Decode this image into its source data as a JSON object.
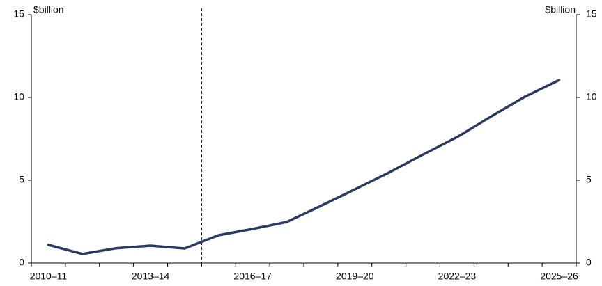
{
  "chart_data": {
    "type": "line",
    "y_label": "$billion",
    "y2_label": "$billion",
    "categories": [
      "2010–11",
      null,
      null,
      "2013–14",
      null,
      null,
      "2016–17",
      null,
      null,
      "2019–20",
      null,
      null,
      "2022–23",
      null,
      null,
      "2025–26"
    ],
    "series": [
      {
        "name": null,
        "color": "#2b3a60",
        "values": [
          1.1,
          0.55,
          0.9,
          1.05,
          0.88,
          1.68,
          2.06,
          2.48,
          3.45,
          4.45,
          5.46,
          6.55,
          7.6,
          8.85,
          10.05,
          11.05
        ]
      }
    ],
    "ylim": [
      0,
      15
    ],
    "yticks": [
      0,
      5,
      10,
      15
    ],
    "y2lim": [
      0,
      15
    ],
    "y2ticks": [
      0,
      5,
      10,
      15
    ],
    "grid": false
  }
}
